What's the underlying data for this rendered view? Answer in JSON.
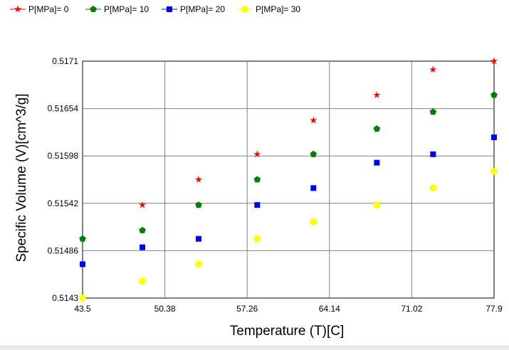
{
  "chart_data": {
    "type": "scatter",
    "title": "",
    "xlabel": "Temperature (T)[C]",
    "ylabel": "Specific Volume (V)[cm^3/g]",
    "xlim": [
      43.5,
      77.9
    ],
    "ylim": [
      0.5143,
      0.5171
    ],
    "x_ticks": [
      "43.5",
      "50.38",
      "57.26",
      "64.14",
      "71.02",
      "77.9"
    ],
    "y_ticks": [
      "0.5143",
      "0.51486",
      "0.51542",
      "0.51598",
      "0.51654",
      "0.5171"
    ],
    "grid": true,
    "legend_position": "top-left",
    "series": [
      {
        "name": "P[MPa]= 0",
        "color": "#ff0000",
        "marker": "star",
        "x": [
          48.5,
          53.2,
          58.1,
          62.8,
          68.1,
          72.8,
          77.9
        ],
        "y": [
          0.5154,
          0.5157,
          0.516,
          0.5164,
          0.5167,
          0.517,
          0.5171
        ]
      },
      {
        "name": "P[MPa]= 10",
        "color": "#008000",
        "marker": "pentagon",
        "x": [
          43.5,
          48.5,
          53.2,
          58.1,
          62.8,
          68.1,
          72.8,
          77.9
        ],
        "y": [
          0.515,
          0.5151,
          0.5154,
          0.5157,
          0.516,
          0.5163,
          0.5165,
          0.5167
        ]
      },
      {
        "name": "P[MPa]= 20",
        "color": "#0000ff",
        "marker": "square",
        "x": [
          43.5,
          48.5,
          53.2,
          58.1,
          62.8,
          68.1,
          72.8,
          77.9
        ],
        "y": [
          0.5147,
          0.5149,
          0.515,
          0.5154,
          0.5156,
          0.5159,
          0.516,
          0.5162
        ]
      },
      {
        "name": "P[MPa]= 30",
        "color": "#ffff00",
        "marker": "circle",
        "x": [
          43.5,
          48.5,
          53.2,
          58.1,
          62.8,
          68.1,
          72.8,
          77.9
        ],
        "y": [
          0.5143,
          0.5145,
          0.5147,
          0.515,
          0.5152,
          0.5154,
          0.5156,
          0.5158
        ]
      }
    ]
  }
}
